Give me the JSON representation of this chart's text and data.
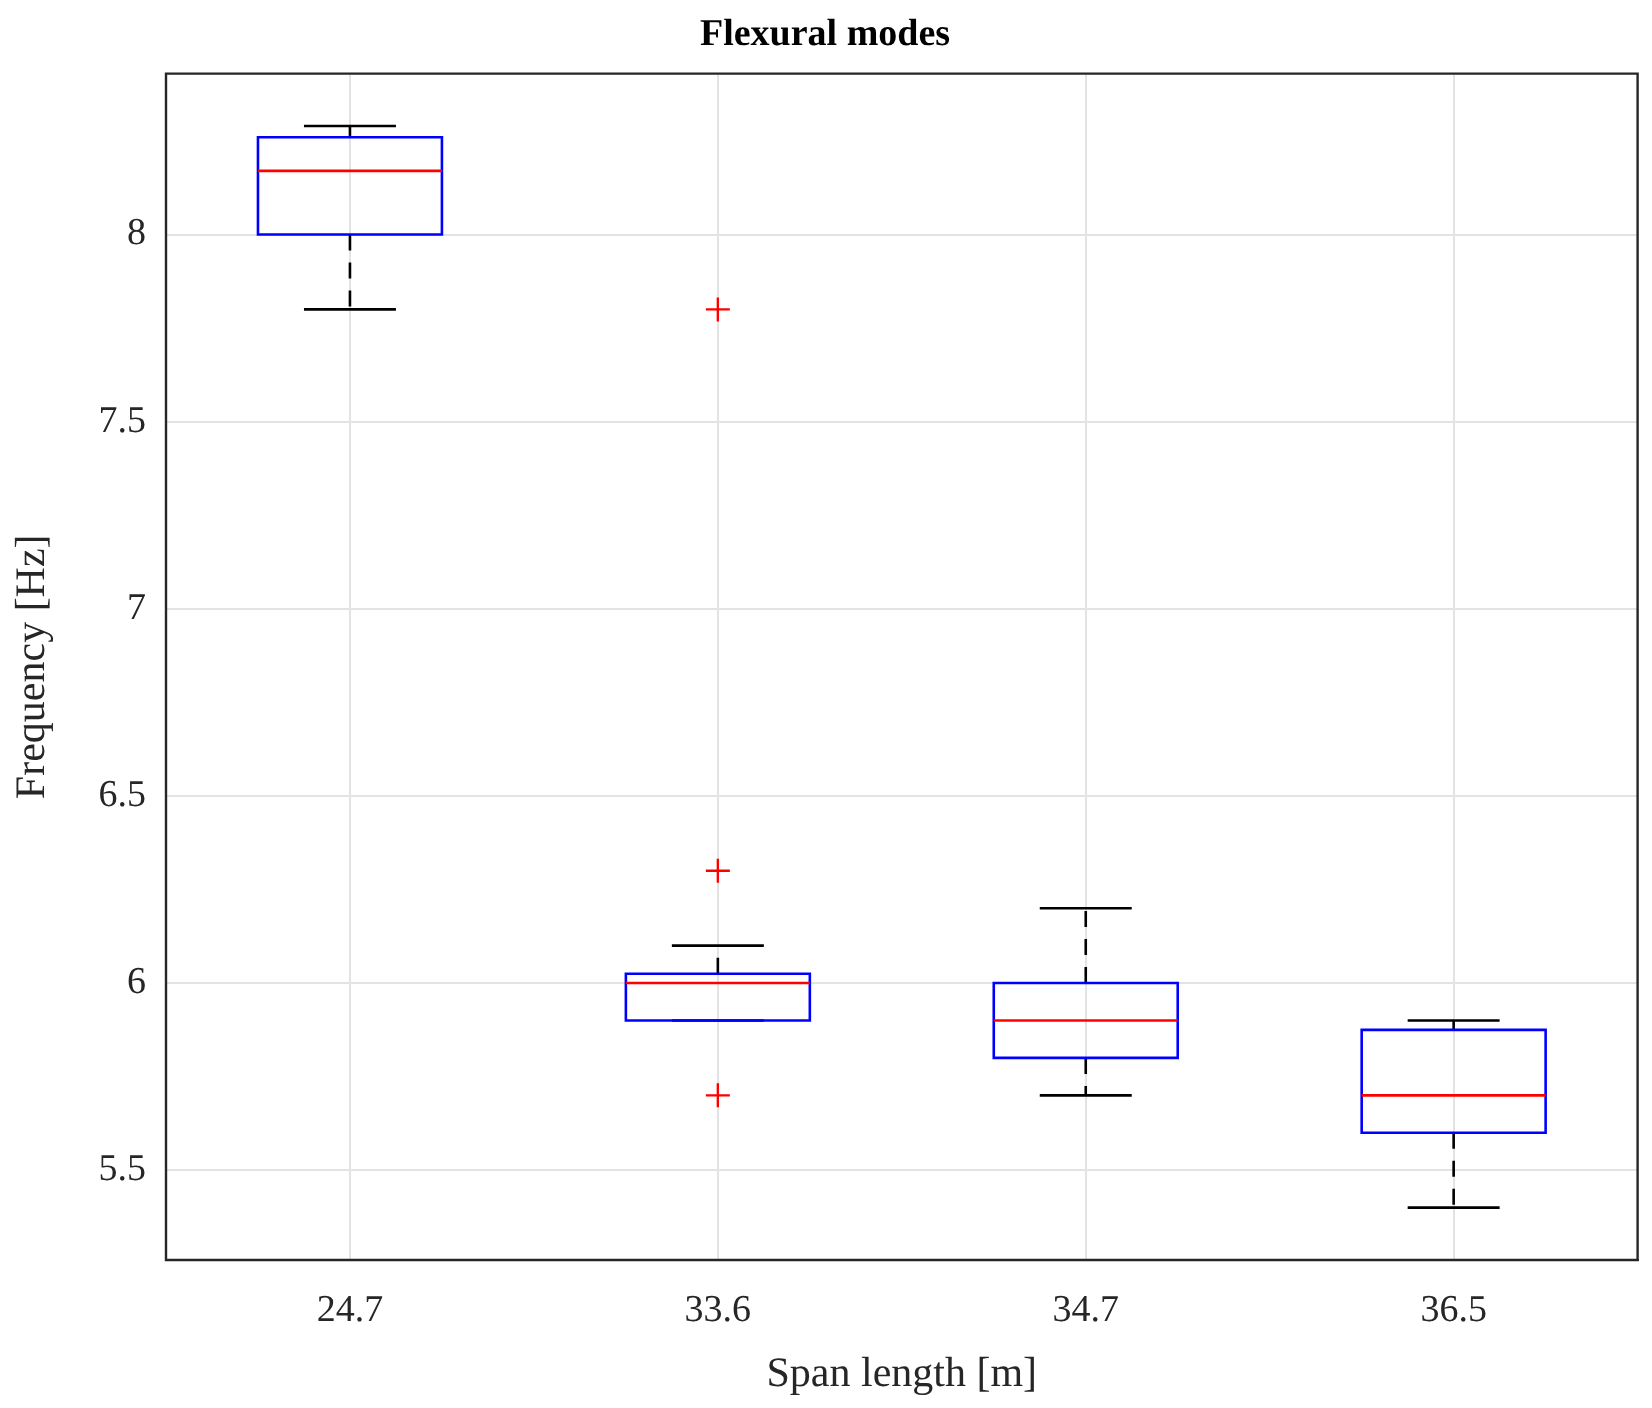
{
  "chart_data": {
    "type": "box",
    "title": "Flexural modes",
    "xlabel": "Span length [m]",
    "ylabel": "Frequency [Hz]",
    "categories": [
      "24.7",
      "33.6",
      "34.7",
      "36.5"
    ],
    "series": [
      {
        "color": "#0000ff",
        "boxes": [
          {
            "low": 7.8,
            "q1": 8.0,
            "median": 8.17,
            "q3": 8.26,
            "high": 8.29
          },
          {
            "low": 5.9,
            "q1": 5.9,
            "median": 6.0,
            "q3": 6.025,
            "high": 6.1,
            "outliers": [
              7.8,
              6.3,
              5.7
            ]
          },
          {
            "low": 5.7,
            "q1": 5.8,
            "median": 5.9,
            "q3": 6.0,
            "high": 6.2
          },
          {
            "low": 5.4,
            "q1": 5.6,
            "median": 5.7,
            "q3": 5.875,
            "high": 5.9
          }
        ]
      }
    ],
    "ylim": [
      5.26,
      8.43
    ],
    "yticks": [
      5.5,
      6,
      6.5,
      7,
      7.5,
      8
    ],
    "grid": true,
    "marker": "cross"
  }
}
